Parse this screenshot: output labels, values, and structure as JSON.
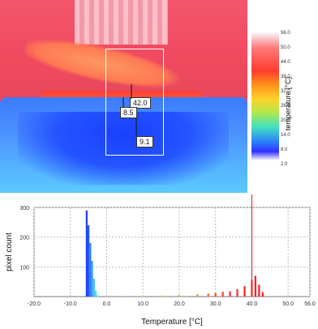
{
  "thermal_image": {
    "markers": [
      {
        "label": "42.0"
      },
      {
        "label": "8.5"
      },
      {
        "label": "9.1"
      }
    ]
  },
  "colorbar": {
    "title": "temperature [°C]",
    "ticks": [
      "56.0",
      "50.0",
      "44.0",
      "38.0",
      "32.0",
      "26.0",
      "20.0",
      "14.0",
      "8.0",
      "2.0"
    ]
  },
  "chart_data": {
    "type": "bar",
    "title": "",
    "xlabel": "Temperature [°C]",
    "ylabel": "pixel count",
    "xlim": [
      -20,
      56
    ],
    "ylim": [
      0,
      300
    ],
    "x_ticks": [
      "-20.0",
      "-10.0",
      "0.0",
      "10.0",
      "20.0",
      "30.0",
      "40.0",
      "50.0",
      "56.0"
    ],
    "y_ticks": [
      "100",
      "200",
      "300"
    ],
    "series": [
      {
        "points": [
          {
            "x": -5.5,
            "y": 290,
            "color": "#1c3cff"
          },
          {
            "x": -5.0,
            "y": 240,
            "color": "#1f56ff"
          },
          {
            "x": -4.5,
            "y": 180,
            "color": "#2a7bff"
          },
          {
            "x": -4.0,
            "y": 120,
            "color": "#39a0ff"
          },
          {
            "x": -3.5,
            "y": 60,
            "color": "#40c0ff"
          },
          {
            "x": -3.0,
            "y": 20,
            "color": "#4fd7ff"
          },
          {
            "x": -2.5,
            "y": 5,
            "color": "#7fe6ff"
          },
          {
            "x": 5.0,
            "y": 2,
            "color": "#9de86b"
          },
          {
            "x": 10.0,
            "y": 3,
            "color": "#d4e85a"
          },
          {
            "x": 15.0,
            "y": 4,
            "color": "#ffd22a"
          },
          {
            "x": 20.0,
            "y": 6,
            "color": "#ffb02a"
          },
          {
            "x": 25.0,
            "y": 8,
            "color": "#ff8b1a"
          },
          {
            "x": 28.0,
            "y": 10,
            "color": "#ff6a1a"
          },
          {
            "x": 30.0,
            "y": 12,
            "color": "#ff4c1a"
          },
          {
            "x": 32.0,
            "y": 16,
            "color": "#ff3b2f"
          },
          {
            "x": 34.0,
            "y": 18,
            "color": "#ff2d2d"
          },
          {
            "x": 36.0,
            "y": 25,
            "color": "#ff2d2d"
          },
          {
            "x": 38.0,
            "y": 35,
            "color": "#ff1f1f"
          },
          {
            "x": 40.0,
            "y": 55,
            "color": "#ff1f1f"
          },
          {
            "x": 41.0,
            "y": 70,
            "color": "#ff1f1f"
          },
          {
            "x": 42.0,
            "y": 40,
            "color": "#ff1f1f"
          },
          {
            "x": 43.0,
            "y": 15,
            "color": "#ff1f1f"
          }
        ]
      }
    ],
    "reference_line_x": 40.0,
    "grid": true
  }
}
